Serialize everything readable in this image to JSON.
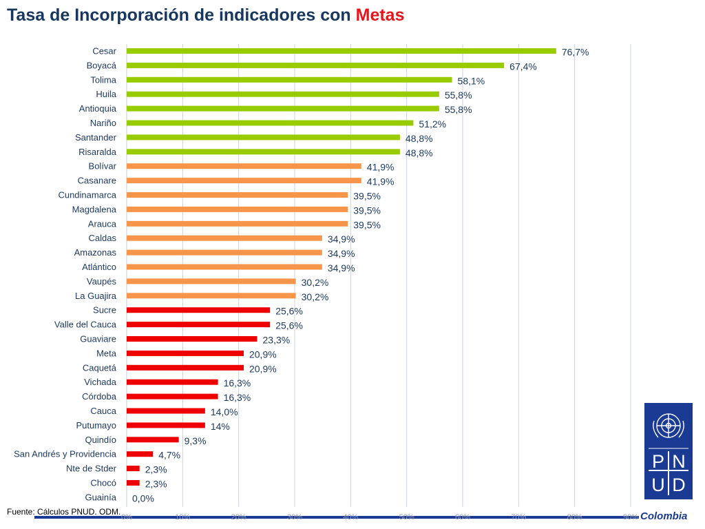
{
  "page": {
    "title_main": "Tasa de Incorporación de indicadores con",
    "title_accent": "Metas",
    "source": "Fuente: Cálculos PNUD. ODM.",
    "logo": {
      "letters": [
        "P",
        "N",
        "U",
        "D"
      ],
      "caption": "Colombia",
      "emblem": "un-emblem-icon"
    }
  },
  "colors": {
    "high": "#99cc00",
    "mid": "#f7964a",
    "low": "#ee0000",
    "title": "#17375e",
    "title_accent": "#e8141b",
    "logo": "#1a3a93"
  },
  "chart_data": {
    "type": "bar",
    "orientation": "horizontal",
    "title": "Tasa de Incorporación de indicadores con Metas",
    "xlim": [
      0,
      90
    ],
    "ticks": [
      "0%",
      "10%",
      "20%",
      "30%",
      "40%",
      "50%",
      "60%",
      "70%",
      "80%",
      "90%"
    ],
    "grid": true,
    "categories": [
      "Cesar",
      "Boyacá",
      "Tolima",
      "Huila",
      "Antioquia",
      "Nariño",
      "Santander",
      "Risaralda",
      "Bolívar",
      "Casanare",
      "Cundinamarca",
      "Magdalena",
      "Arauca",
      "Caldas",
      "Amazonas",
      "Atlántico",
      "Vaupés",
      "La Guajira",
      "Sucre",
      "Valle del Cauca",
      "Guaviare",
      "Meta",
      "Caquetá",
      "Vichada",
      "Córdoba",
      "Cauca",
      "Putumayo",
      "Quindío",
      "San Andrés y Providencia",
      "Nte de Stder",
      "Chocó",
      "Guainía"
    ],
    "values": [
      76.7,
      67.4,
      58.1,
      55.8,
      55.8,
      51.2,
      48.8,
      48.8,
      41.9,
      41.9,
      39.5,
      39.5,
      39.5,
      34.9,
      34.9,
      34.9,
      30.2,
      30.2,
      25.6,
      25.6,
      23.3,
      20.9,
      20.9,
      16.3,
      16.3,
      14.0,
      14,
      9.3,
      4.7,
      2.3,
      2.3,
      0.0
    ],
    "labels": [
      "76,7%",
      "67,4%",
      "58,1%",
      "55,8%",
      "55,8%",
      "51,2%",
      "48,8%",
      "48,8%",
      "41,9%",
      "41,9%",
      "39,5%",
      "39,5%",
      "39,5%",
      "34,9%",
      "34,9%",
      "34,9%",
      "30,2%",
      "30,2%",
      "25,6%",
      "25,6%",
      "23,3%",
      "20,9%",
      "20,9%",
      "16,3%",
      "16,3%",
      "14,0%",
      "14%",
      "9,3%",
      "4,7%",
      "2,3%",
      "2,3%",
      "0,0%"
    ],
    "bar_groups": [
      "high",
      "high",
      "high",
      "high",
      "high",
      "high",
      "high",
      "high",
      "mid",
      "mid",
      "mid",
      "mid",
      "mid",
      "mid",
      "mid",
      "mid",
      "mid",
      "mid",
      "low",
      "low",
      "low",
      "low",
      "low",
      "low",
      "low",
      "low",
      "low",
      "low",
      "low",
      "low",
      "low",
      "low"
    ]
  }
}
